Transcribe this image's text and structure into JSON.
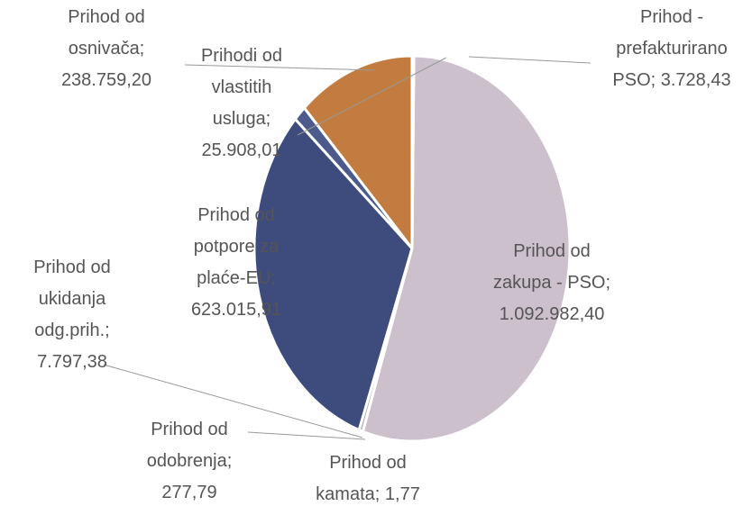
{
  "chart_data": {
    "type": "pie",
    "categories": [
      "Prihod - prefakturirano PSO;",
      "Prihod od zakupa - PSO;",
      "Prihod od kamata;",
      "Prihod od odobrenja;",
      "Prihod od ukidanja odg.prih.;",
      "Prihod od potpore za plaće-EU;",
      "Prihodi od vlastitih usluga;",
      "Prihod od osnivača;"
    ],
    "values": [
      3728.43,
      1092982.4,
      1.77,
      277.79,
      7797.38,
      623015.91,
      25908.01,
      238759.2
    ],
    "value_labels": [
      "3.728,43",
      "1.092.982,40",
      "1,77",
      "277,79",
      "7.797,38",
      "623.015,91",
      "25.908,01",
      "238.759,20"
    ],
    "colors": [
      "#6b74c2",
      "#cbc0cc",
      "#d9d9d9",
      "#e3c58c",
      "#a6a6a6",
      "#3e4b7d",
      "#4d5b8c",
      "#c27c40"
    ]
  }
}
